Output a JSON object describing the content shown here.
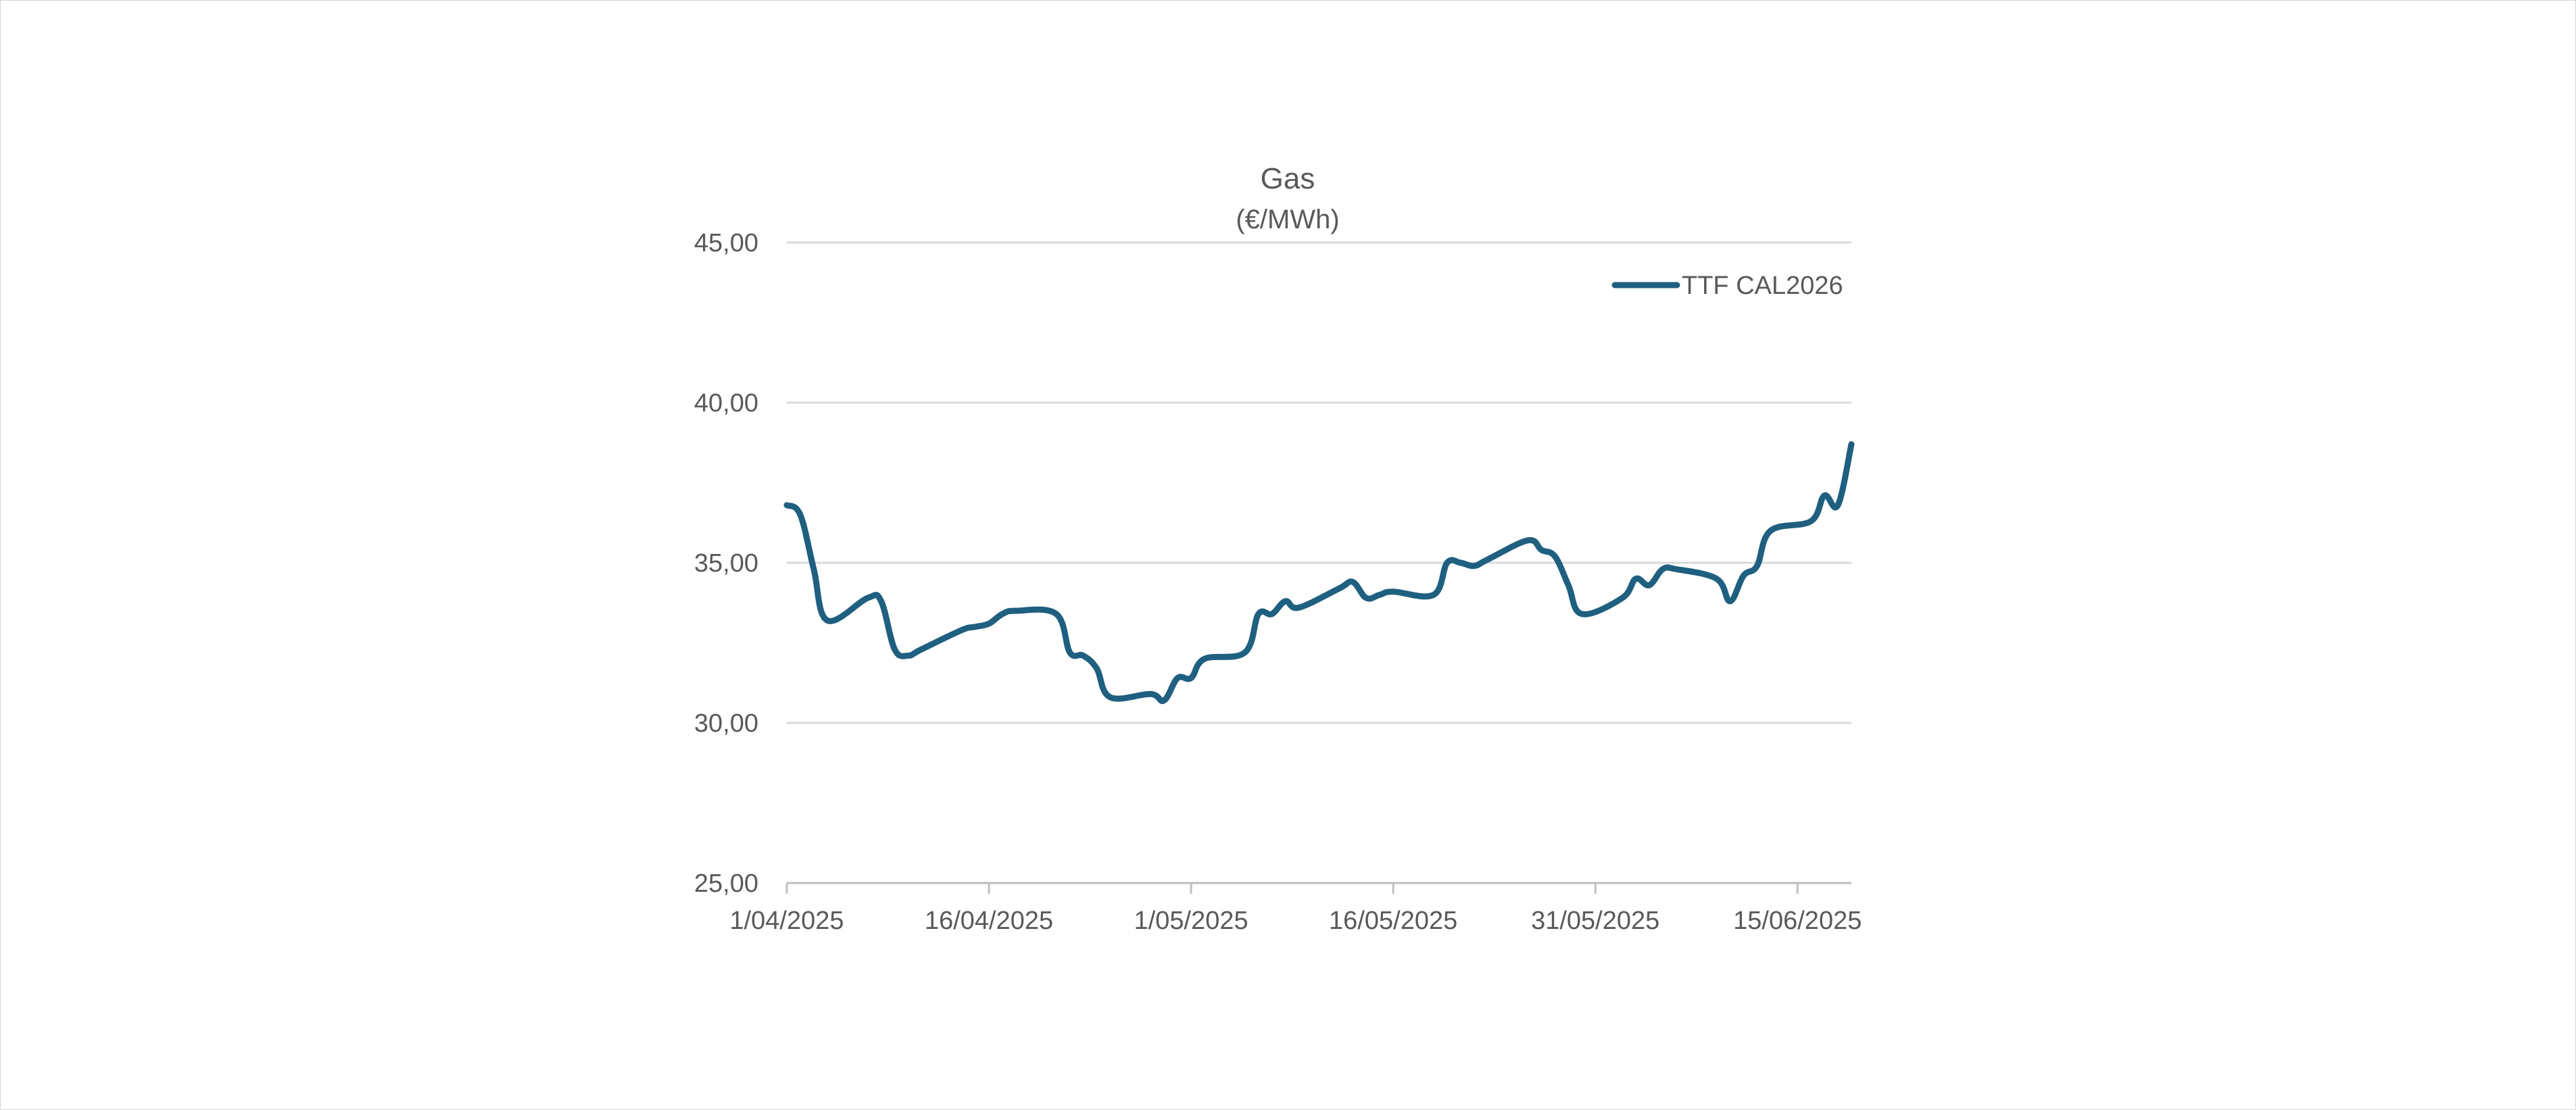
{
  "chart_data": {
    "type": "line",
    "title": "Gas",
    "subtitle": "(€/MWh)",
    "ylim": [
      25,
      45
    ],
    "yticks": [
      25,
      30,
      35,
      40,
      45
    ],
    "ytick_labels": [
      "25,00",
      "30,00",
      "35,00",
      "40,00",
      "45,00"
    ],
    "xlim": [
      "2025-04-01",
      "2025-06-19"
    ],
    "xticks": [
      "2025-04-01",
      "2025-04-16",
      "2025-05-01",
      "2025-05-16",
      "2025-05-31",
      "2025-06-15"
    ],
    "xtick_labels": [
      "1/04/2025",
      "16/04/2025",
      "1/05/2025",
      "16/05/2025",
      "31/05/2025",
      "15/06/2025"
    ],
    "grid": true,
    "legend": "top-right",
    "series": [
      {
        "name": "TTF CAL2026",
        "color": "#1f5f80",
        "x": [
          "2025-04-01",
          "2025-04-02",
          "2025-04-03",
          "2025-04-04",
          "2025-04-07",
          "2025-04-08",
          "2025-04-09",
          "2025-04-10",
          "2025-04-11",
          "2025-04-14",
          "2025-04-15",
          "2025-04-16",
          "2025-04-17",
          "2025-04-18",
          "2025-04-21",
          "2025-04-22",
          "2025-04-23",
          "2025-04-24",
          "2025-04-25",
          "2025-04-28",
          "2025-04-29",
          "2025-04-30",
          "2025-05-01",
          "2025-05-02",
          "2025-05-05",
          "2025-05-06",
          "2025-05-07",
          "2025-05-08",
          "2025-05-09",
          "2025-05-12",
          "2025-05-13",
          "2025-05-14",
          "2025-05-15",
          "2025-05-16",
          "2025-05-19",
          "2025-05-20",
          "2025-05-21",
          "2025-05-22",
          "2025-05-23",
          "2025-05-26",
          "2025-05-27",
          "2025-05-28",
          "2025-05-29",
          "2025-05-30",
          "2025-06-02",
          "2025-06-03",
          "2025-06-04",
          "2025-06-05",
          "2025-06-06",
          "2025-06-09",
          "2025-06-10",
          "2025-06-11",
          "2025-06-12",
          "2025-06-13",
          "2025-06-16",
          "2025-06-17",
          "2025-06-18",
          "2025-06-19"
        ],
        "y": [
          36.8,
          36.5,
          34.8,
          33.2,
          33.9,
          33.8,
          32.3,
          32.1,
          32.3,
          32.9,
          33.0,
          33.1,
          33.4,
          33.5,
          33.4,
          32.2,
          32.1,
          31.7,
          30.8,
          30.9,
          30.7,
          31.4,
          31.4,
          32.0,
          32.2,
          33.4,
          33.4,
          33.8,
          33.6,
          34.2,
          34.4,
          33.9,
          34.0,
          34.1,
          34.0,
          35.0,
          35.0,
          34.9,
          35.1,
          35.7,
          35.4,
          35.2,
          34.3,
          33.4,
          33.9,
          34.5,
          34.3,
          34.8,
          34.8,
          34.5,
          33.8,
          34.6,
          34.9,
          36.0,
          36.3,
          37.1,
          36.8,
          38.7
        ]
      }
    ]
  }
}
